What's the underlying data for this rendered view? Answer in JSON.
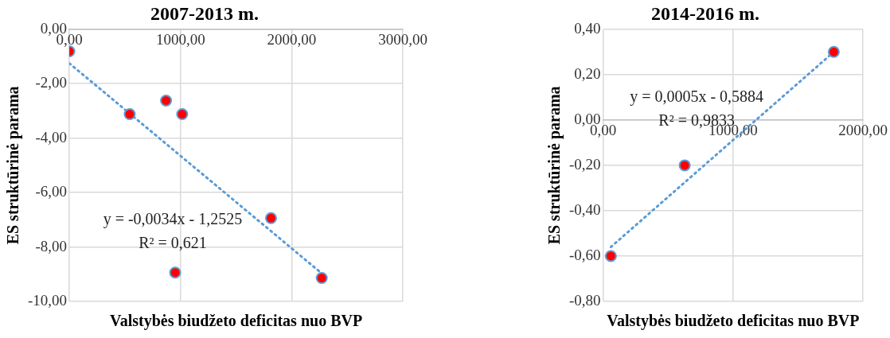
{
  "chart_data": [
    {
      "type": "scatter",
      "title": "2007-2013 m.",
      "xlabel": "Valstybės biudžeto deficitas nuo BVP",
      "ylabel": "ES struktūrinė parama",
      "xlim": [
        0,
        3000
      ],
      "xticks": [
        {
          "value": 0,
          "label": "0,00"
        },
        {
          "value": 1000,
          "label": "1000,00"
        },
        {
          "value": 2000,
          "label": "2000,00"
        },
        {
          "value": 3000,
          "label": "3000,00"
        }
      ],
      "ylim": [
        -10,
        0
      ],
      "yticks": [
        {
          "value": 0,
          "label": "0,00"
        },
        {
          "value": -2,
          "label": "-2,00"
        },
        {
          "value": -4,
          "label": "-4,00"
        },
        {
          "value": -6,
          "label": "-6,00"
        },
        {
          "value": -8,
          "label": "-8,00"
        },
        {
          "value": -10,
          "label": "-10,00"
        }
      ],
      "grid": true,
      "marker": "circle",
      "series": [
        {
          "type": "scatter",
          "color": "#ff0000",
          "x": [
            0,
            543,
            870,
            1015,
            1814,
            952,
            2270
          ],
          "values": [
            -0.81,
            -3.12,
            -2.62,
            -3.12,
            -6.94,
            -8.94,
            -9.14
          ]
        },
        {
          "type": "line",
          "color": "#5b9bd5",
          "line_style": "dotted",
          "marker": "none",
          "x": [
            0,
            2270
          ],
          "values": [
            -1.25,
            -8.97
          ]
        }
      ],
      "annotations": [
        "y = -0,0034x - 1,2525",
        "R² = 0,621"
      ]
    },
    {
      "type": "scatter",
      "title": "2014-2016 m.",
      "xlabel": "Valstybės biudžeto deficitas nuo BVP",
      "ylabel": "ES struktūrinė parama",
      "xlim": [
        0,
        2000
      ],
      "xticks": [
        {
          "value": 0,
          "label": "0,00"
        },
        {
          "value": 1000,
          "label": "1000,00"
        },
        {
          "value": 2000,
          "label": "2000,00"
        }
      ],
      "ylim": [
        -0.8,
        0.4
      ],
      "yticks": [
        {
          "value": 0.4,
          "label": "0,40"
        },
        {
          "value": 0.2,
          "label": "0,20"
        },
        {
          "value": 0,
          "label": "0,00"
        },
        {
          "value": -0.2,
          "label": "-0,20"
        },
        {
          "value": -0.4,
          "label": "-0,40"
        },
        {
          "value": -0.6,
          "label": "-0,60"
        },
        {
          "value": -0.8,
          "label": "-0,80"
        }
      ],
      "grid": true,
      "marker": "circle",
      "series": [
        {
          "type": "scatter",
          "color": "#ff0000",
          "x": [
            60,
            628,
            1775
          ],
          "values": [
            -0.6,
            -0.2,
            0.3
          ]
        },
        {
          "type": "line",
          "color": "#5b9bd5",
          "line_style": "dotted",
          "marker": "none",
          "x": [
            60,
            1775
          ],
          "values": [
            -0.56,
            0.3
          ]
        }
      ],
      "annotations": [
        "y = 0,0005x - 0,5884",
        "R² = 0,9833"
      ]
    }
  ]
}
